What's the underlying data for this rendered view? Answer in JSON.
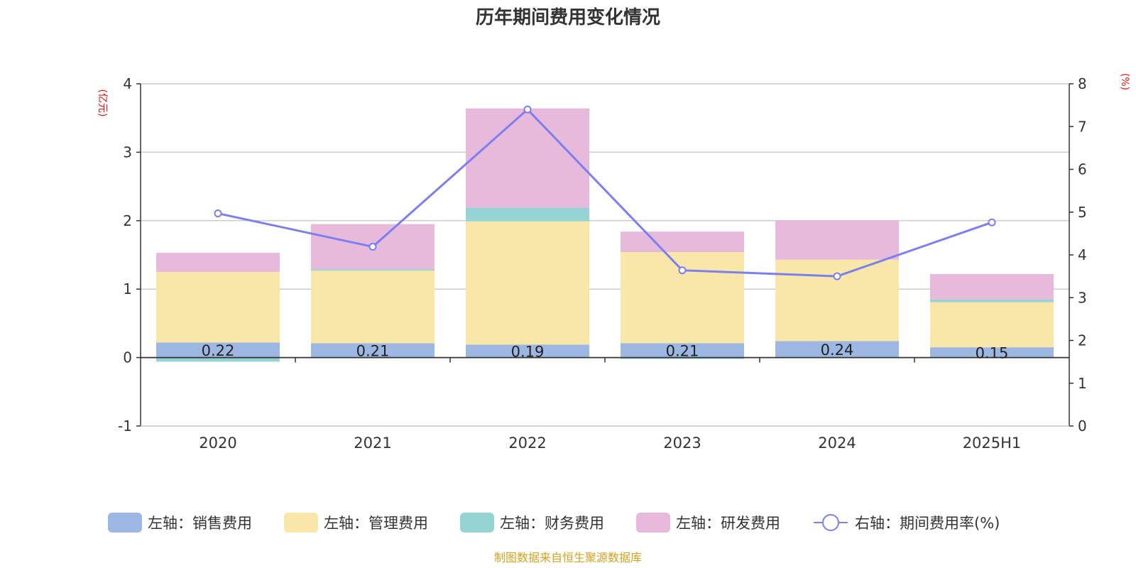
{
  "chart_data": {
    "type": "bar",
    "stacked": true,
    "title": "历年期间费用变化情况",
    "categories": [
      "2020",
      "2021",
      "2022",
      "2023",
      "2024",
      "2025H1"
    ],
    "left_axis": {
      "unit": "(亿元)",
      "range": [
        -1,
        4
      ],
      "ticks": [
        -1,
        0,
        1,
        2,
        3,
        4
      ]
    },
    "right_axis": {
      "unit": "(%)",
      "range": [
        0,
        8
      ],
      "ticks": [
        0,
        1,
        2,
        3,
        4,
        5,
        6,
        7,
        8
      ]
    },
    "series": [
      {
        "name": "销售费用",
        "legend": "左轴：销售费用",
        "axis": "left",
        "color": "#9db7e3",
        "values": [
          0.22,
          0.21,
          0.19,
          0.21,
          0.24,
          0.15
        ],
        "labels": [
          "0.22",
          "0.21",
          "0.19",
          "0.21",
          "0.24",
          "0.15"
        ]
      },
      {
        "name": "管理费用",
        "legend": "左轴：管理费用",
        "axis": "left",
        "color": "#f8e7a8",
        "values": [
          1.03,
          1.06,
          1.8,
          1.33,
          1.19,
          0.66
        ]
      },
      {
        "name": "财务费用",
        "legend": "左轴：财务费用",
        "axis": "left",
        "color": "#96d4d4",
        "values": [
          -0.06,
          0.02,
          0.2,
          -0.02,
          0.0,
          0.04
        ]
      },
      {
        "name": "研发费用",
        "legend": "左轴：研发费用",
        "axis": "left",
        "color": "#e7b9da",
        "values": [
          0.28,
          0.66,
          1.45,
          0.3,
          0.57,
          0.37
        ]
      },
      {
        "name": "期间费用率(%)",
        "legend": "右轴：期间费用率(%)",
        "axis": "right",
        "type": "line",
        "color": "#7b7ff0",
        "values": [
          4.97,
          4.19,
          7.4,
          3.64,
          3.5,
          4.76
        ]
      }
    ],
    "source": "制图数据来自恒生聚源数据库"
  }
}
